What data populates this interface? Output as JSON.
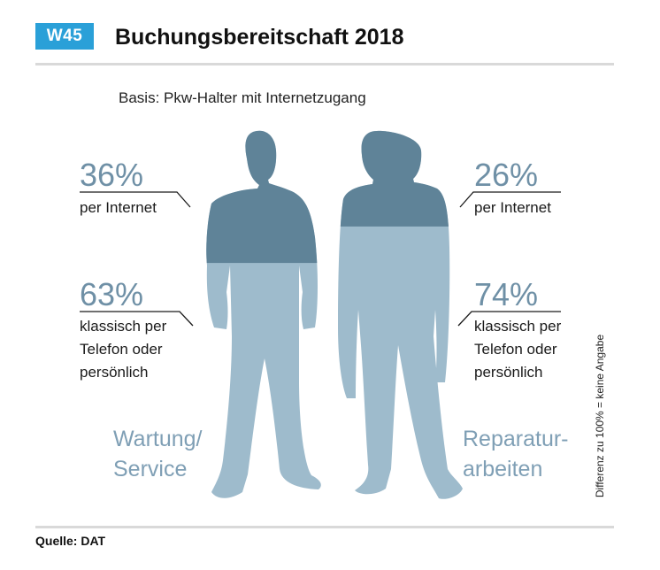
{
  "header": {
    "badge": "W45",
    "title": "Buchungsbereitschaft 2018",
    "subtitle": "Basis: Pkw-Halter mit Internetzugang"
  },
  "colors": {
    "accent": "#2aa0d8",
    "dark_segment": "#5f8398",
    "light_segment": "#9ebbcc",
    "value_text": "#6f90a6"
  },
  "chart_data": {
    "type": "pictogram",
    "title": "Buchungsbereitschaft 2018",
    "subtitle": "Basis: Pkw-Halter mit Internetzugang",
    "categories": [
      "Wartung/ Service",
      "Reparatur- arbeiten"
    ],
    "series": [
      {
        "name": "per Internet",
        "values": [
          36,
          26
        ]
      },
      {
        "name": "klassisch per Telefon oder persönlich",
        "values": [
          63,
          74
        ]
      }
    ],
    "unit": "%"
  },
  "labels": {
    "left": {
      "internet_pct": "36%",
      "internet_label": "per Internet",
      "classic_pct": "63%",
      "classic_line1": "klassisch per",
      "classic_line2": "Telefon oder",
      "classic_line3": "persönlich",
      "category_line1": "Wartung/",
      "category_line2": "Service"
    },
    "right": {
      "internet_pct": "26%",
      "internet_label": "per Internet",
      "classic_pct": "74%",
      "classic_line1": "klassisch per",
      "classic_line2": "Telefon oder",
      "classic_line3": "persönlich",
      "category_line1": "Reparatur-",
      "category_line2": "arbeiten"
    }
  },
  "side_note": "Differenz zu 100% = keine Angabe",
  "footer": {
    "source": "Quelle: DAT"
  }
}
